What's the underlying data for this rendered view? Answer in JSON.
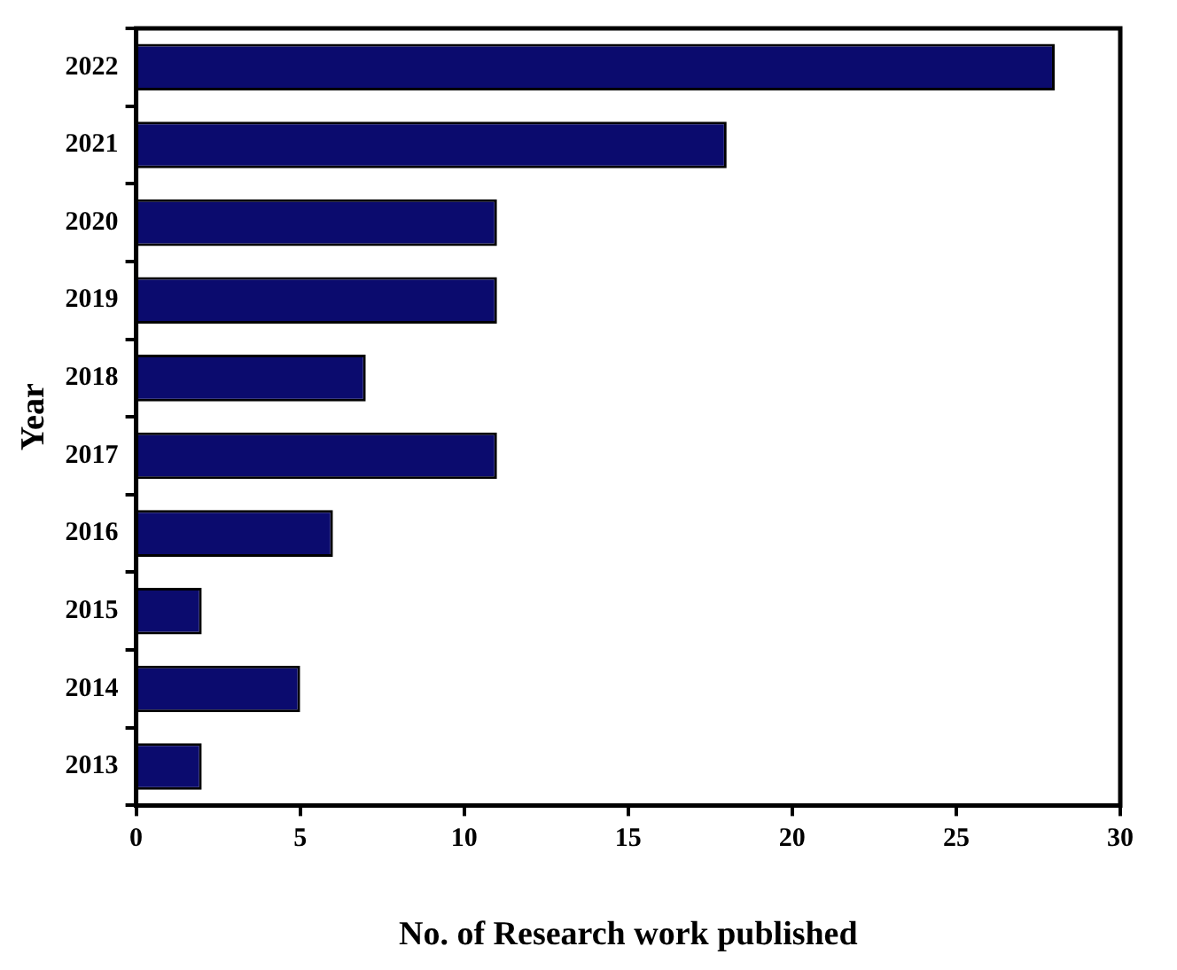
{
  "chart_data": {
    "type": "bar",
    "orientation": "horizontal",
    "xlabel": "No. of Research work published",
    "ylabel": "Year",
    "categories": [
      "2022",
      "2021",
      "2020",
      "2019",
      "2018",
      "2017",
      "2016",
      "2015",
      "2014",
      "2013"
    ],
    "values": [
      28,
      18,
      11,
      11,
      7,
      11,
      6,
      2,
      5,
      2
    ],
    "color": "#0b0b6e",
    "xlim": [
      0,
      30
    ],
    "xticks": [
      0,
      5,
      10,
      15,
      20,
      25,
      30
    ],
    "grid": false,
    "legend": false
  }
}
